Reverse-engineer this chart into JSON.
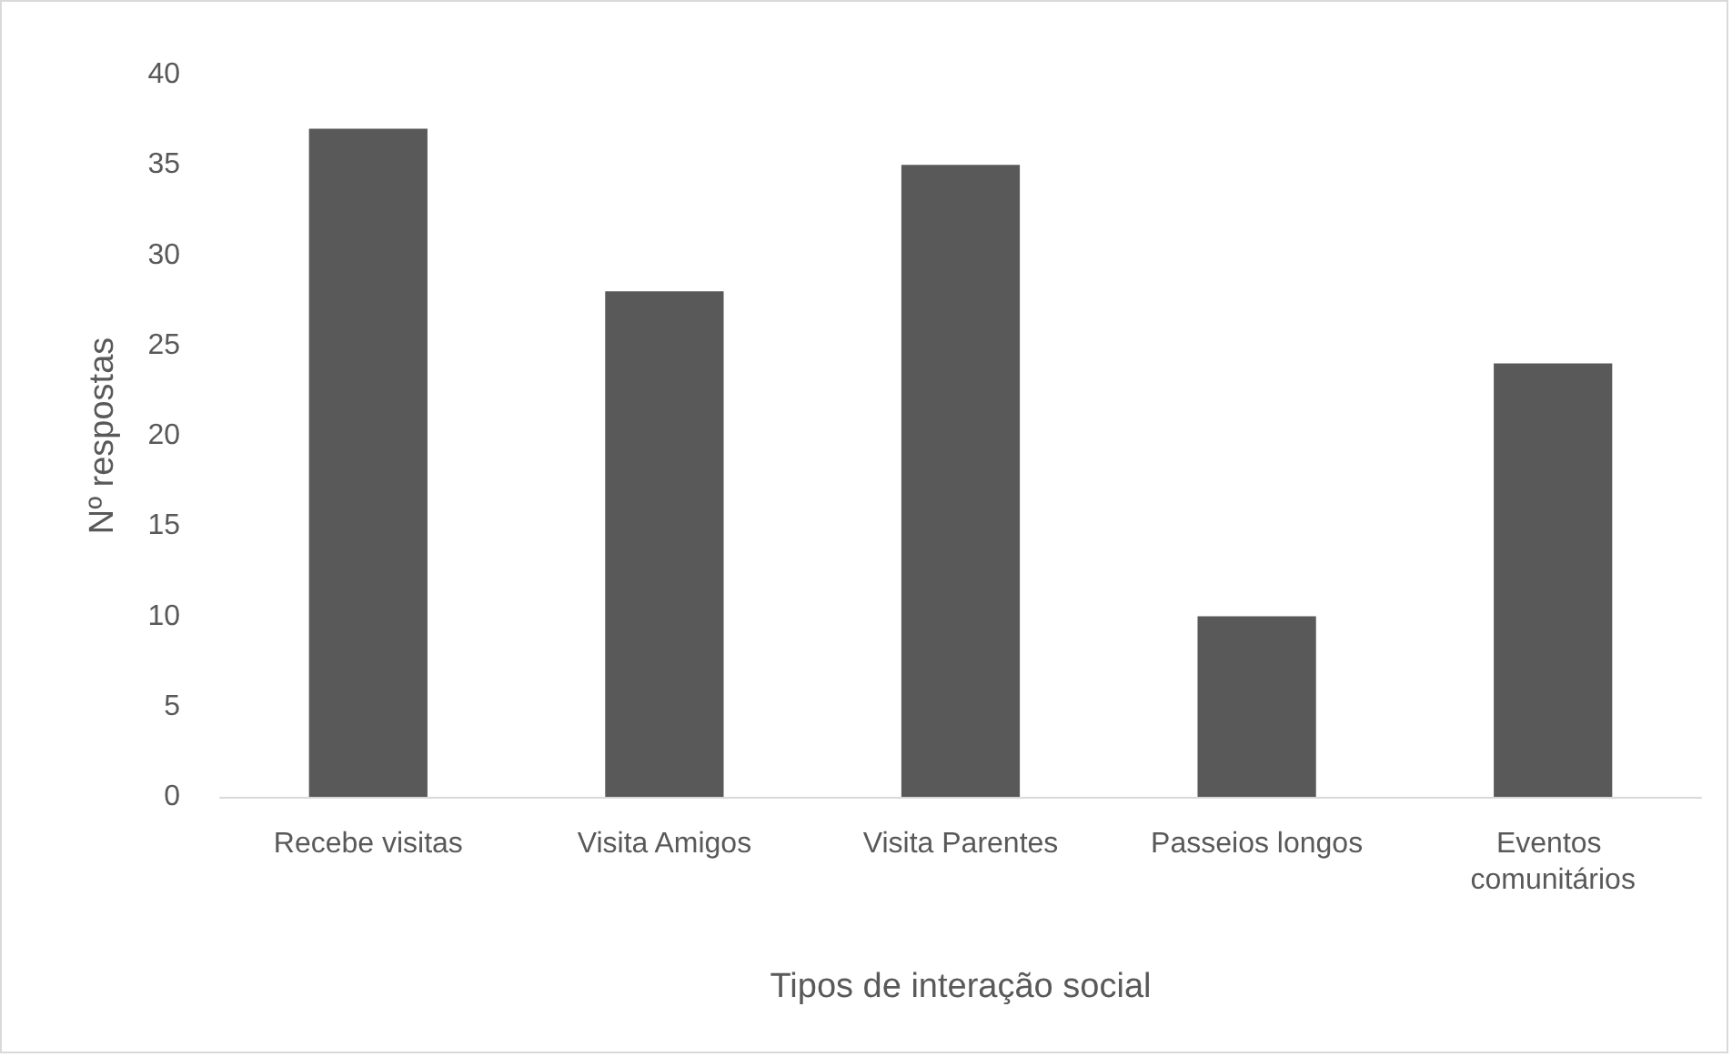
{
  "chart_data": {
    "type": "bar",
    "xlabel": "Tipos de interação social",
    "ylabel": "Nº respostas",
    "categories": [
      "Recebe visitas",
      "Visita Amigos",
      "Visita Parentes",
      "Passeios longos",
      "Eventos comunitários"
    ],
    "values": [
      37,
      28,
      35,
      10,
      24
    ],
    "color": "#595959",
    "ylim": [
      0,
      40
    ],
    "yticks": [
      0,
      5,
      10,
      15,
      20,
      25,
      30,
      35,
      40
    ],
    "grid": false
  }
}
